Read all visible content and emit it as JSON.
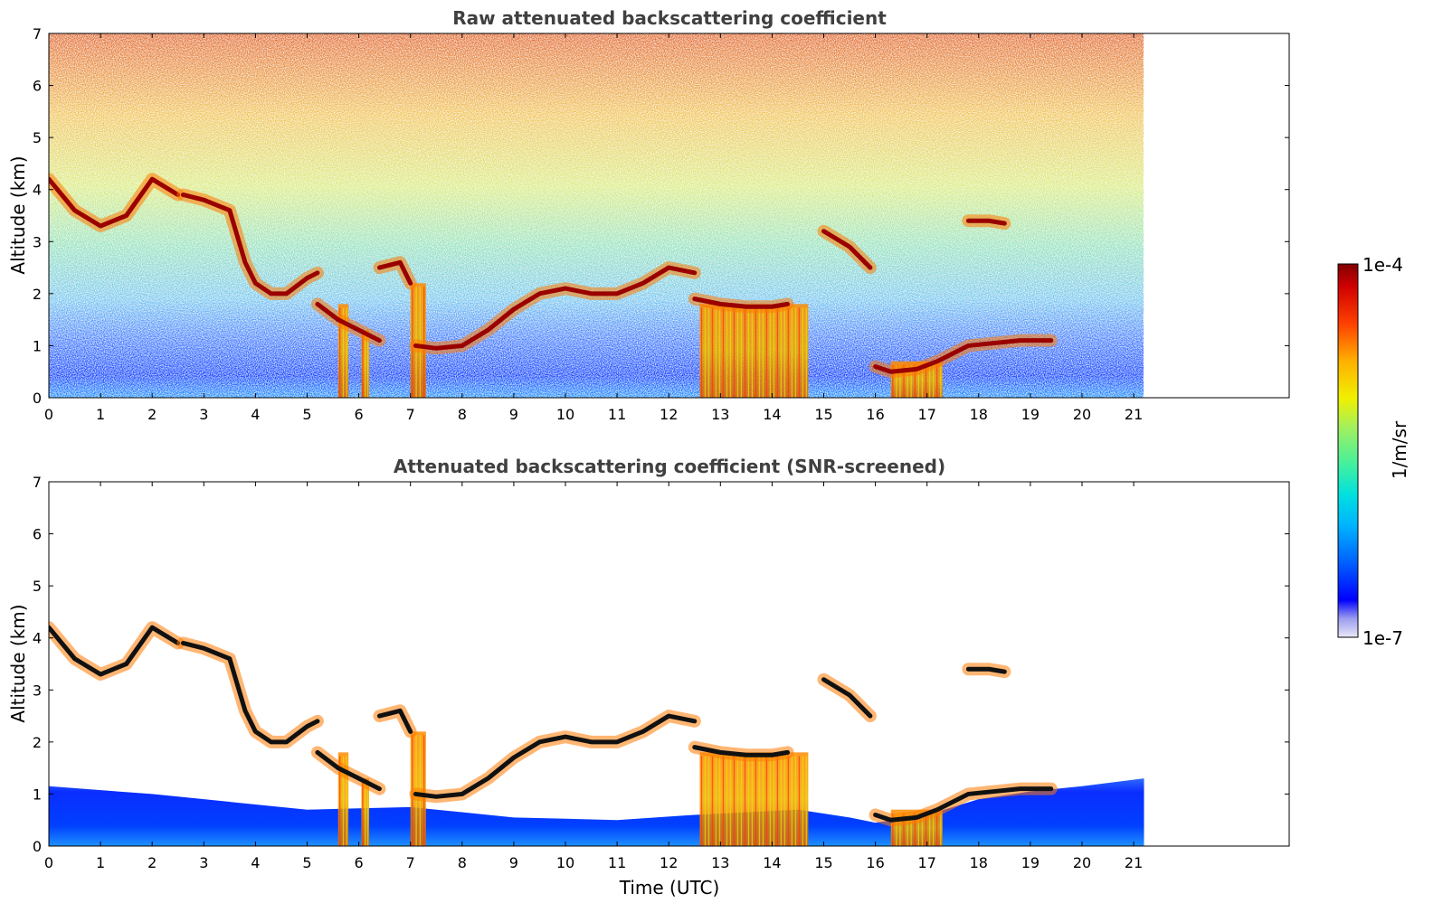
{
  "chart_data": [
    {
      "type": "heatmap",
      "title": "Raw attenuated backscattering coefficient",
      "xlabel": "",
      "ylabel": "Altitude (km)",
      "xlim": [
        0,
        24
      ],
      "ylim": [
        0,
        7
      ],
      "x_ticks": [
        "0",
        "1",
        "2",
        "3",
        "4",
        "5",
        "6",
        "7",
        "8",
        "9",
        "10",
        "11",
        "12",
        "13",
        "14",
        "15",
        "16",
        "17",
        "18",
        "19",
        "20",
        "21"
      ],
      "y_ticks": [
        "0",
        "1",
        "2",
        "3",
        "4",
        "5",
        "6",
        "7"
      ],
      "data_time_end": 21.2,
      "screened": false,
      "cloud_base_layers": [
        {
          "x": [
            0,
            0.5,
            1,
            1.5,
            2,
            2.5
          ],
          "y": [
            4.2,
            3.6,
            3.3,
            3.5,
            4.2,
            3.9
          ]
        },
        {
          "x": [
            2.6,
            3,
            3.5,
            3.8,
            4,
            4.3,
            4.6,
            5,
            5.2
          ],
          "y": [
            3.9,
            3.8,
            3.6,
            2.6,
            2.2,
            2.0,
            2.0,
            2.3,
            2.4
          ]
        },
        {
          "x": [
            5.2,
            5.6,
            6,
            6.4
          ],
          "y": [
            1.8,
            1.5,
            1.3,
            1.1
          ]
        },
        {
          "x": [
            6.4,
            6.8,
            7
          ],
          "y": [
            2.5,
            2.6,
            2.2
          ]
        },
        {
          "x": [
            7.1,
            7.5,
            8,
            8.5,
            9,
            9.5,
            10,
            10.5,
            11,
            11.5,
            12,
            12.5
          ],
          "y": [
            1.0,
            0.95,
            1.0,
            1.3,
            1.7,
            2.0,
            2.1,
            2.0,
            2.0,
            2.2,
            2.5,
            2.4
          ]
        },
        {
          "x": [
            12.5,
            13,
            13.5,
            14,
            14.3
          ],
          "y": [
            1.9,
            1.8,
            1.75,
            1.75,
            1.8
          ]
        },
        {
          "x": [
            15,
            15.5,
            15.9
          ],
          "y": [
            3.2,
            2.9,
            2.5
          ]
        },
        {
          "x": [
            16,
            16.3,
            16.8,
            17.2,
            17.8,
            18.3,
            18.8,
            19.4
          ],
          "y": [
            0.6,
            0.5,
            0.55,
            0.7,
            1.0,
            1.05,
            1.1,
            1.1
          ]
        },
        {
          "x": [
            17.8,
            18.2,
            18.5
          ],
          "y": [
            3.4,
            3.4,
            3.35
          ]
        }
      ],
      "precipitation_shafts": [
        {
          "x": [
            5.6,
            5.8
          ],
          "top": 1.8
        },
        {
          "x": [
            6.05,
            6.2
          ],
          "top": 1.3
        },
        {
          "x": [
            7.0,
            7.3
          ],
          "top": 2.2
        },
        {
          "x": [
            12.6,
            14.7
          ],
          "top": 1.8
        },
        {
          "x": [
            16.3,
            17.3
          ],
          "top": 0.7
        }
      ]
    },
    {
      "type": "heatmap",
      "title": "Attenuated backscattering coefficient (SNR-screened)",
      "xlabel": "Time (UTC)",
      "ylabel": "Altitude (km)",
      "xlim": [
        0,
        24
      ],
      "ylim": [
        0,
        7
      ],
      "x_ticks": [
        "0",
        "1",
        "2",
        "3",
        "4",
        "5",
        "6",
        "7",
        "8",
        "9",
        "10",
        "11",
        "12",
        "13",
        "14",
        "15",
        "16",
        "17",
        "18",
        "19",
        "20",
        "21"
      ],
      "y_ticks": [
        "0",
        "1",
        "2",
        "3",
        "4",
        "5",
        "6",
        "7"
      ],
      "data_time_end": 21.2,
      "screened": true
    }
  ],
  "colorbar": {
    "label": "1/m/sr",
    "min_label": "1e-7",
    "max_label": "1e-4",
    "scale": "log",
    "range": [
      1e-07,
      0.0001
    ],
    "colormap": [
      "#e8e8f8",
      "#b8b8f0",
      "#0000ff",
      "#0060ff",
      "#00c8ff",
      "#40e0d0",
      "#80ff80",
      "#ffff00",
      "#ff9000",
      "#ff2000",
      "#8b0000"
    ]
  }
}
